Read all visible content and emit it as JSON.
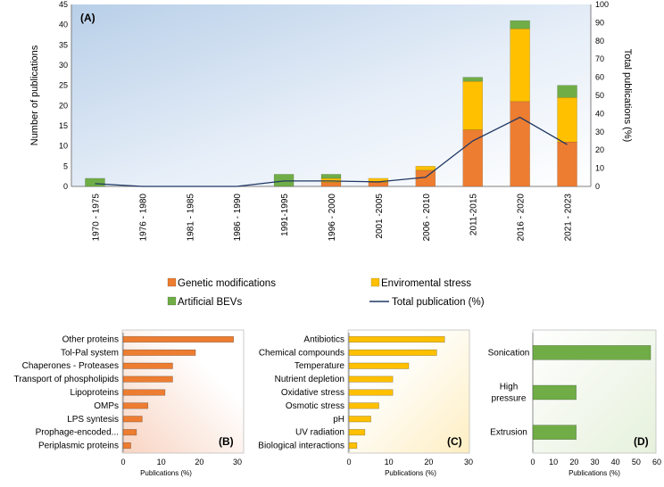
{
  "chart_data": [
    {
      "id": "A",
      "type": "bar",
      "stacked": true,
      "panel_label": "(A)",
      "categories": [
        "1970 - 1975",
        "1976 - 1980",
        "1981 - 1985",
        "1986 - 1990",
        "1991-1995",
        "1996 - 2000",
        "2001 -2005",
        "2006 - 2010",
        "2011-2015",
        "2016 - 2020",
        "2021 - 2023"
      ],
      "series": [
        {
          "name": "Genetic modifications",
          "color": "#ED7D31",
          "values": [
            0,
            0,
            0,
            0,
            0,
            1,
            1,
            4,
            14,
            21,
            11
          ]
        },
        {
          "name": "Enviromental stress",
          "color": "#FFC000",
          "values": [
            0,
            0,
            0,
            0,
            0,
            1,
            1,
            1,
            12,
            18,
            11
          ]
        },
        {
          "name": "Artificial BEVs",
          "color": "#70AD47",
          "values": [
            2,
            0,
            0,
            0,
            3,
            1,
            0,
            0,
            1,
            2,
            3
          ]
        }
      ],
      "line_series": {
        "name": "Total publication (%)",
        "color": "#1F3864",
        "values": [
          1.5,
          0,
          0,
          0,
          3,
          3,
          2.5,
          5,
          25,
          38,
          23
        ]
      },
      "ylabel": "Number of publications",
      "ylim": [
        0,
        45
      ],
      "yticks": [
        0,
        5,
        10,
        15,
        20,
        25,
        30,
        35,
        40,
        45
      ],
      "y2label": "Total publications (%)",
      "y2lim": [
        0,
        100
      ],
      "y2ticks": [
        0,
        10,
        20,
        30,
        40,
        50,
        60,
        70,
        80,
        90,
        100
      ],
      "legend": [
        "Genetic modifications",
        "Enviromental stress",
        "Artificial BEVs",
        "Total publication (%)"
      ]
    },
    {
      "id": "B",
      "type": "bar",
      "orientation": "horizontal",
      "panel_label": "(B)",
      "color": "#ED7D31",
      "categories": [
        "Other proteins",
        "Tol-Pal system",
        "Chaperones - Proteases",
        "Transport of phospholipids",
        "Lipoproteins",
        "OMPs",
        "LPS syntesis",
        "Prophage-encoded...",
        "Periplasmic proteins"
      ],
      "values": [
        29,
        19,
        13,
        13,
        11,
        6.5,
        5,
        3.5,
        2
      ],
      "xlabel": "Publications (%)",
      "xlim": [
        0,
        30
      ],
      "xticks": [
        0,
        10,
        20,
        30
      ]
    },
    {
      "id": "C",
      "type": "bar",
      "orientation": "horizontal",
      "panel_label": "(C)",
      "color": "#FFC000",
      "categories": [
        "Antibiotics",
        "Chemical compounds",
        "Temperature",
        "Nutrient depletion",
        "Oxidative stress",
        "Osmotic stress",
        "pH",
        "UV radiation",
        "Biological interactions"
      ],
      "values": [
        24,
        22,
        15,
        11,
        11,
        7.5,
        5.5,
        4,
        2
      ],
      "xlabel": "Publications (%)",
      "xlim": [
        0,
        30
      ],
      "xticks": [
        0,
        10,
        20,
        30
      ]
    },
    {
      "id": "D",
      "type": "bar",
      "orientation": "horizontal",
      "panel_label": "(D)",
      "color": "#70AD47",
      "categories": [
        "Sonication",
        "High pressure",
        "Extrusion"
      ],
      "values": [
        57,
        21,
        21
      ],
      "xlabel": "Publications (%)",
      "xlim": [
        0,
        60
      ],
      "xticks": [
        0,
        10,
        20,
        30,
        40,
        50,
        60
      ]
    }
  ]
}
